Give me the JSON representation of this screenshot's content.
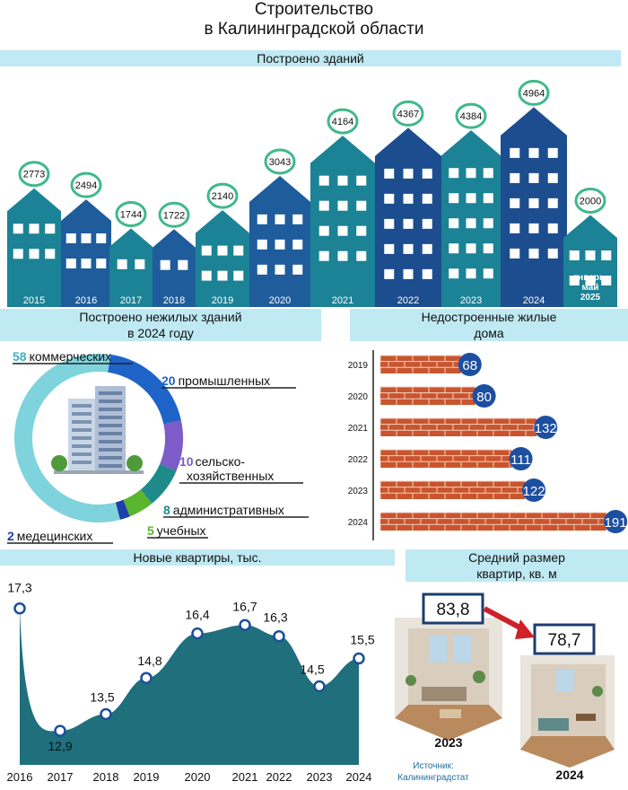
{
  "title_line1": "Строительство",
  "title_line2": "в Калининградской области",
  "buildings": {
    "banner": "Построено зданий",
    "chart_data": {
      "type": "bar",
      "categories": [
        "2015",
        "2016",
        "2017",
        "2018",
        "2019",
        "2020",
        "2021",
        "2022",
        "2023",
        "2024",
        "январь-май 2025"
      ],
      "values": [
        2773,
        2494,
        1744,
        1722,
        2140,
        3043,
        4164,
        4367,
        4384,
        4964,
        2000
      ],
      "title": "Построено зданий"
    },
    "label_lines": [
      "январь-",
      "май",
      "2025"
    ]
  },
  "nonres": {
    "banner_line1": "Построено нежилых зданий",
    "banner_line2": "в 2024 году",
    "chart_data": {
      "type": "pie",
      "categories": [
        "коммерческих",
        "промышленных",
        "сельско-хозяйственных",
        "административных",
        "учебных",
        "медецинских"
      ],
      "values": [
        58,
        20,
        10,
        8,
        5,
        2
      ],
      "colors": [
        "#7fd3dc",
        "#1e63c8",
        "#7b5cc8",
        "#1f8a8a",
        "#5ab52f",
        "#1e3fa8"
      ]
    },
    "label_second_line": "хозяйственных",
    "label_first_line": "сельско-"
  },
  "unfinished": {
    "banner_line1": "Недостроенные жилые",
    "banner_line2": "дома",
    "chart_data": {
      "type": "bar",
      "categories": [
        "2019",
        "2020",
        "2021",
        "2022",
        "2023",
        "2024"
      ],
      "values": [
        68,
        80,
        132,
        111,
        122,
        191
      ]
    }
  },
  "flats": {
    "banner": "Новые квартиры, тыс.",
    "chart_data": {
      "type": "area",
      "categories": [
        "2016",
        "2017",
        "2018",
        "2019",
        "2020",
        "2021",
        "2022",
        "2023",
        "2024"
      ],
      "values": [
        17.3,
        12.9,
        13.5,
        14.8,
        16.4,
        16.7,
        16.3,
        14.5,
        15.5
      ],
      "value_labels": [
        "17,3",
        "12,9",
        "13,5",
        "14,8",
        "16,4",
        "16,7",
        "16,3",
        "14,5",
        "15,5"
      ]
    }
  },
  "avgsize": {
    "banner_line1": "Средний размер",
    "banner_line2": "квартир, кв. м",
    "chart_data": {
      "type": "bar",
      "categories": [
        "2023",
        "2024"
      ],
      "values": [
        83.8,
        78.7
      ],
      "value_labels": [
        "83,8",
        "78,7"
      ]
    }
  },
  "source_line1": "Источник:",
  "source_line2": "Калининградстат",
  "colors": {
    "banner": "#bfe9f3",
    "teal": "#1c8296",
    "blue": "#1e5c9c",
    "navy": "#1c4d8e",
    "brick": "#c9542e",
    "badge": "#1c4fa0",
    "circle_border": "#3fb98a",
    "area_fill": "#1f6f7d"
  }
}
